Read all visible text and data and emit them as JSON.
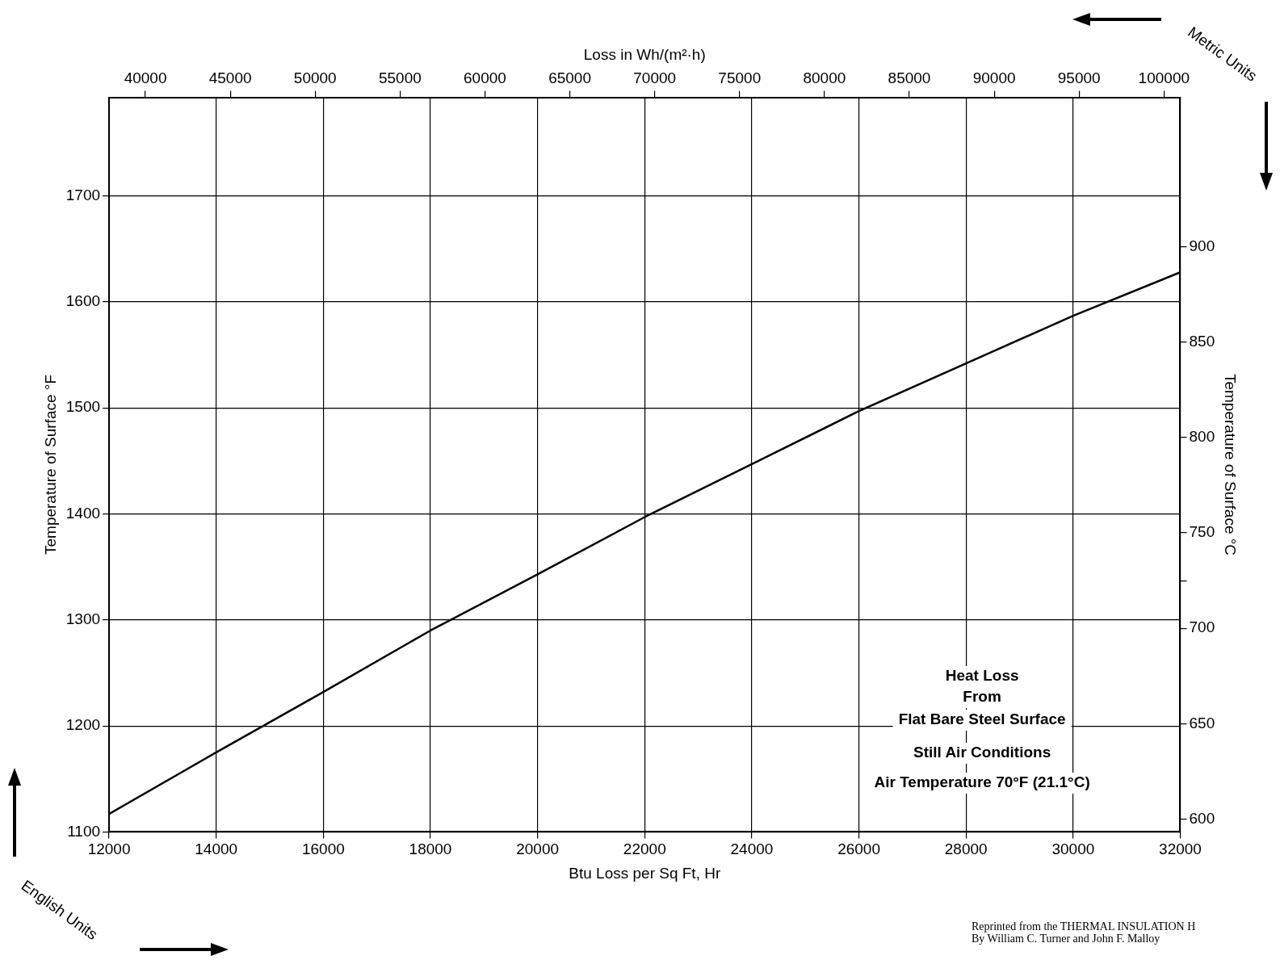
{
  "chart_data": {
    "type": "line",
    "xlabel": "Btu Loss per Sq Ft, Hr",
    "ylabel": "Temperature of Surface °F",
    "y2label": "Temperature of Surface °C",
    "x2label": "Loss in Wh/(m²·h)",
    "x": [
      12000,
      14000,
      16000,
      18000,
      20000,
      22000,
      24000,
      26000,
      28000,
      30000,
      32000
    ],
    "series": [
      {
        "color": "#000000",
        "values": [
          1117,
          1175,
          1232,
          1290,
          1343,
          1397,
          1447,
          1497,
          1542,
          1587,
          1628
        ]
      }
    ],
    "xlim": [
      12000,
      32000
    ],
    "xticks": [
      12000,
      14000,
      16000,
      18000,
      20000,
      22000,
      24000,
      26000,
      28000,
      30000,
      32000
    ],
    "ylim": [
      1100,
      1793
    ],
    "yticks": [
      1100,
      1200,
      1300,
      1400,
      1500,
      1600,
      1700
    ],
    "x2lim": [
      37860,
      100960
    ],
    "x2ticks": [
      40000,
      45000,
      50000,
      55000,
      60000,
      65000,
      70000,
      75000,
      80000,
      85000,
      90000,
      95000,
      100000
    ],
    "y2lim": [
      593.3,
      978.3
    ],
    "y2ticks": [
      600,
      650,
      700,
      {
        "value": 725,
        "label": null
      },
      750,
      800,
      850,
      900
    ],
    "grid": true,
    "legend": false,
    "marker": "none",
    "line_style": "solid",
    "annotations": [
      "Heat Loss",
      "From",
      "Flat Bare Steel Surface",
      "Still Air Conditions",
      "Air Temperature 70°F (21.1°C)",
      "Metric Units",
      "English Units",
      "Reprinted from the THERMAL INSULATION H",
      "By William C. Turner and John F. Malloy"
    ]
  }
}
